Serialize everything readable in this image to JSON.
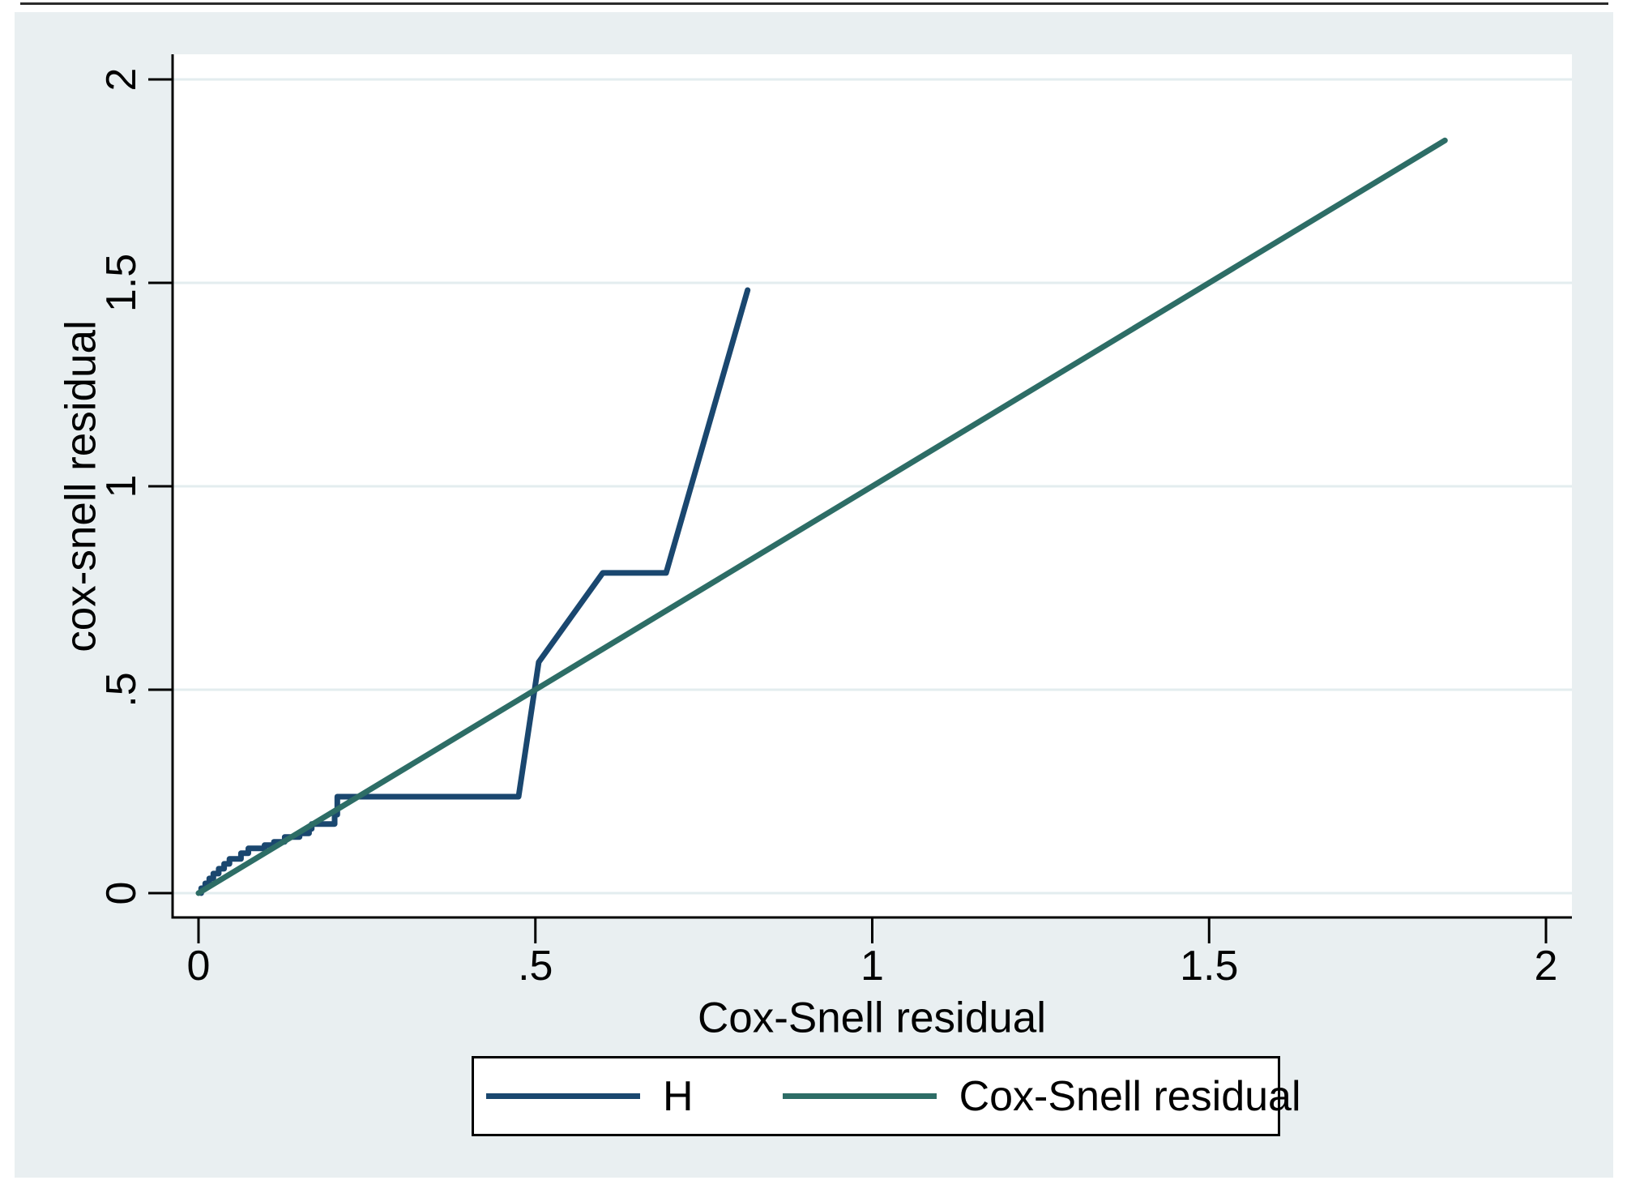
{
  "figure": {
    "background": "#ffffff",
    "canvas_color": "#e9eff1",
    "top_border_color": "#2b2b2b"
  },
  "chart_data": {
    "type": "line",
    "title": "",
    "xlabel": "Cox-Snell residual",
    "ylabel": "cox-snell residual",
    "xlim": [
      0,
      2
    ],
    "ylim": [
      0,
      2
    ],
    "grid": "horizontal-only",
    "grid_color": "#e3edef",
    "axis_color": "#000000",
    "xticks": {
      "values": [
        0,
        0.5,
        1,
        1.5,
        2
      ],
      "labels": [
        "0",
        ".5",
        "1",
        "1.5",
        "2"
      ]
    },
    "yticks": {
      "values": [
        0,
        0.5,
        1,
        1.5,
        2
      ],
      "labels": [
        "0",
        ".5",
        "1",
        "1.5",
        "2"
      ]
    },
    "series": [
      {
        "name": "H",
        "color": "#1a476f",
        "width": 7,
        "points": [
          [
            0.004,
            0.0
          ],
          [
            0.004,
            0.012
          ],
          [
            0.01,
            0.012
          ],
          [
            0.01,
            0.024
          ],
          [
            0.016,
            0.024
          ],
          [
            0.016,
            0.036
          ],
          [
            0.022,
            0.036
          ],
          [
            0.022,
            0.048
          ],
          [
            0.03,
            0.048
          ],
          [
            0.03,
            0.06
          ],
          [
            0.038,
            0.06
          ],
          [
            0.038,
            0.072
          ],
          [
            0.046,
            0.072
          ],
          [
            0.046,
            0.084
          ],
          [
            0.063,
            0.084
          ],
          [
            0.063,
            0.098
          ],
          [
            0.074,
            0.098
          ],
          [
            0.074,
            0.11
          ],
          [
            0.098,
            0.11
          ],
          [
            0.098,
            0.118
          ],
          [
            0.112,
            0.118
          ],
          [
            0.112,
            0.126
          ],
          [
            0.128,
            0.126
          ],
          [
            0.128,
            0.138
          ],
          [
            0.15,
            0.138
          ],
          [
            0.15,
            0.147
          ],
          [
            0.164,
            0.147
          ],
          [
            0.164,
            0.158
          ],
          [
            0.168,
            0.158
          ],
          [
            0.168,
            0.17
          ],
          [
            0.202,
            0.17
          ],
          [
            0.202,
            0.193
          ],
          [
            0.206,
            0.193
          ],
          [
            0.206,
            0.237
          ],
          [
            0.475,
            0.237
          ],
          [
            0.505,
            0.568
          ],
          [
            0.6,
            0.787
          ],
          [
            0.694,
            0.787
          ],
          [
            0.815,
            1.482
          ]
        ]
      },
      {
        "name": "Cox-Snell residual",
        "color": "#2d6d66",
        "width": 7,
        "points": [
          [
            0.0,
            0.0
          ],
          [
            1.85,
            1.85
          ]
        ]
      }
    ],
    "legend": {
      "position": "bottom-center",
      "background": "#ffffff",
      "border_color": "#000000",
      "entries": [
        {
          "label": "H",
          "color": "#1a476f"
        },
        {
          "label": "Cox-Snell residual",
          "color": "#2d6d66"
        }
      ]
    }
  }
}
